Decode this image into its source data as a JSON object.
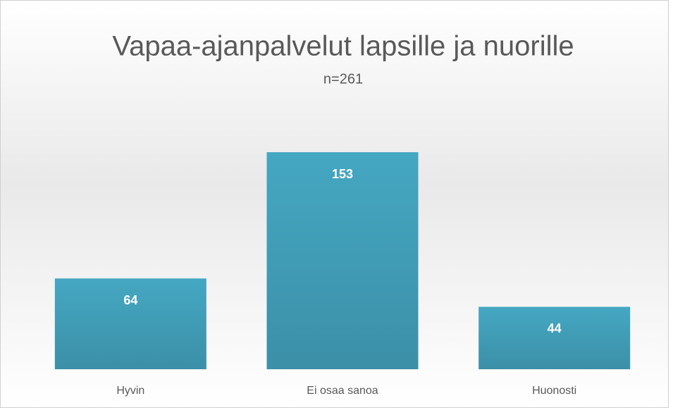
{
  "chart_data": {
    "type": "bar",
    "title": "Vapaa-ajanpalvelut lapsille ja nuorille",
    "subtitle": "n=261",
    "categories": [
      "Hyvin",
      "Ei osaa sanoa",
      "Huonosti"
    ],
    "values": [
      64,
      153,
      44
    ],
    "color": "#45a7c2"
  }
}
